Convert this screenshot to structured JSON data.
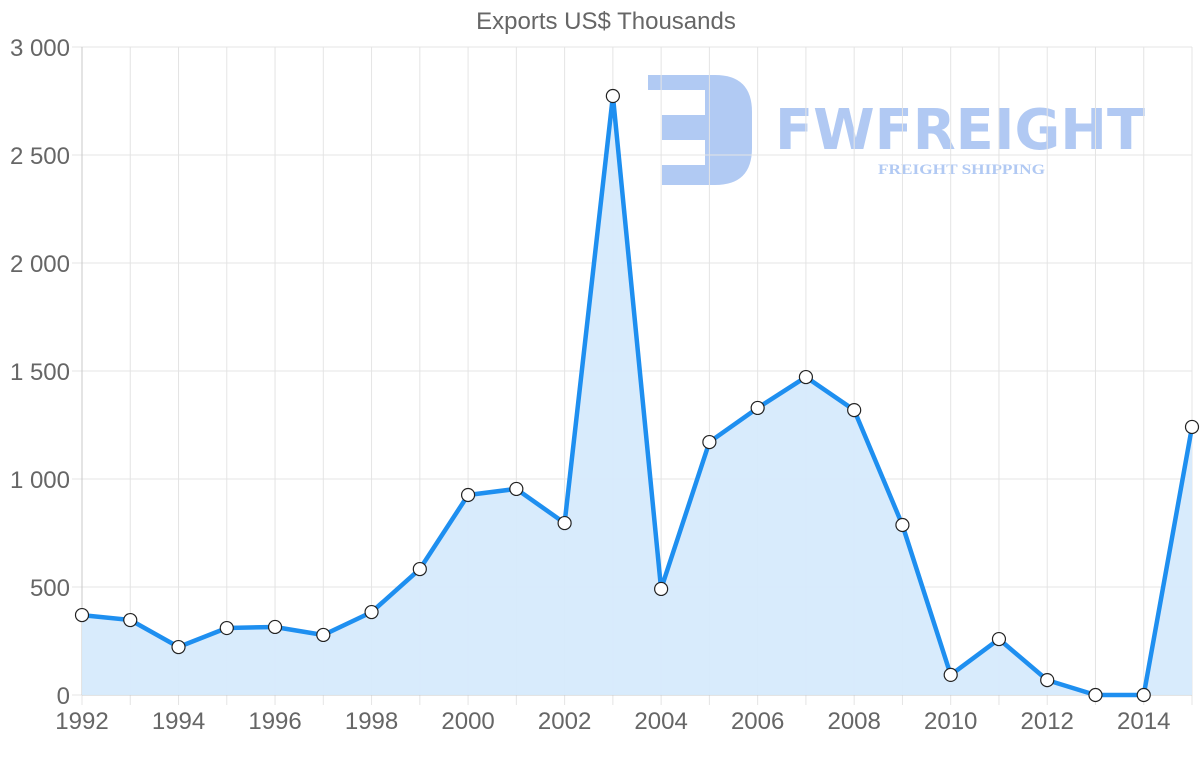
{
  "chart_data": {
    "type": "area",
    "title": "Exports US$ Thousands",
    "xlabel": "",
    "ylabel": "",
    "x": [
      1992,
      1993,
      1994,
      1995,
      1996,
      1997,
      1998,
      1999,
      2000,
      2001,
      2002,
      2003,
      2004,
      2005,
      2006,
      2007,
      2008,
      2009,
      2010,
      2011,
      2012,
      2013,
      2014,
      2015
    ],
    "series": [
      {
        "name": "Exports US$ Thousands",
        "values": [
          370,
          347,
          222,
          310,
          315,
          278,
          384,
          583,
          926,
          954,
          796,
          2773,
          491,
          1171,
          1329,
          1472,
          1319,
          787,
          93,
          259,
          69,
          0,
          0,
          1241
        ]
      }
    ],
    "ylim": [
      0,
      3000
    ],
    "xlim": [
      1992,
      2015
    ],
    "y_ticks": [
      "0",
      "500",
      "1 000",
      "1 500",
      "2 000",
      "2 500",
      "3 000"
    ],
    "x_ticks": [
      "1992",
      "1994",
      "1996",
      "1998",
      "2000",
      "2002",
      "2004",
      "2006",
      "2008",
      "2010",
      "2012",
      "2014"
    ],
    "grid": true,
    "legend": "none",
    "colors": {
      "line": "#1e8ff0",
      "fill": "#d6eafc",
      "marker_fill": "#ffffff",
      "marker_stroke": "#222222",
      "grid": "#e4e4e4"
    }
  },
  "watermark": {
    "brand": "FWFREIGHT",
    "tagline": "FREIGHT SHIPPING",
    "color": "#a9c4f2"
  }
}
